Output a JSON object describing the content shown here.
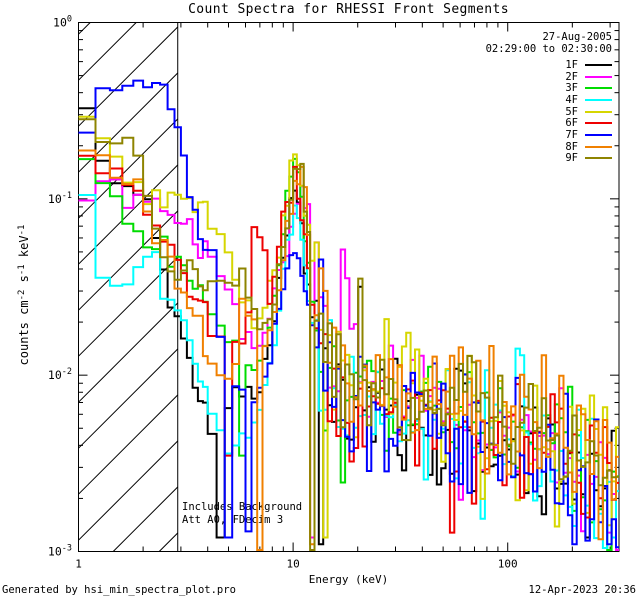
{
  "title": "Count Spectra for RHESSI Front Segments",
  "legend": {
    "date": "27-Aug-2005",
    "time_range": "02:29:00 to 02:30:00",
    "entries": [
      {
        "label": "1F",
        "color": "#000000"
      },
      {
        "label": "2F",
        "color": "#ff00ff"
      },
      {
        "label": "3F",
        "color": "#00dc00"
      },
      {
        "label": "4F",
        "color": "#00ffff"
      },
      {
        "label": "5F",
        "color": "#d6d600"
      },
      {
        "label": "6F",
        "color": "#ee0000"
      },
      {
        "label": "7F",
        "color": "#0000ff"
      },
      {
        "label": "8F",
        "color": "#f08000"
      },
      {
        "label": "9F",
        "color": "#8e8400"
      }
    ]
  },
  "annotation": {
    "line1": "Includes Background",
    "line2": "Att A0, FDecim 3"
  },
  "footer": {
    "left": "Generated by hsi_min_spectra_plot.pro",
    "right": "12-Apr-2023 20:36"
  },
  "axes": {
    "x": {
      "label": "Energy (keV)",
      "min": 1,
      "max": 330,
      "majors": [
        {
          "value": 1,
          "label": "1"
        },
        {
          "value": 10,
          "label": "10"
        },
        {
          "value": 100,
          "label": "100"
        }
      ]
    },
    "y": {
      "label_parts": [
        {
          "t": "counts cm"
        },
        {
          "t": "-2",
          "sup": true
        },
        {
          "t": " s"
        },
        {
          "t": "-1",
          "sup": true
        },
        {
          "t": " keV"
        },
        {
          "t": "-1",
          "sup": true
        }
      ],
      "min": 0.001,
      "max": 1,
      "majors": [
        {
          "value": 1,
          "exp": "0"
        },
        {
          "value": 0.1,
          "exp": "-1"
        },
        {
          "value": 0.01,
          "exp": "-2"
        },
        {
          "value": 0.001,
          "exp": "-3"
        }
      ]
    }
  },
  "chart_data": {
    "type": "line",
    "style": "histogram-step",
    "x_scale": "log",
    "y_scale": "log",
    "xlim": [
      1,
      330
    ],
    "ylim": [
      0.001,
      1
    ],
    "xlabel": "Energy (keV)",
    "ylabel": "counts cm^-2 s^-1 keV^-1",
    "grid": false,
    "legend_position": "top-right-inside",
    "hatch_below_keV": 2.9,
    "binning": [
      {
        "from": 1,
        "to": 4,
        "step": 0.2
      },
      {
        "from": 4,
        "to": 12,
        "step": 0.4
      },
      {
        "from": 12,
        "to": 330,
        "ratio": 1.048
      }
    ],
    "noise": {
      "sigma_smooth": 0.04,
      "smooth_below_keV": 12.4,
      "sigma_transition": 0.24,
      "transition_below_keV": 21,
      "sigma_noisy": 0.17,
      "noisy_slope": 0.05
    },
    "series": [
      {
        "name": "1F",
        "color": "#000000",
        "seed": 7,
        "anchors": [
          [
            1,
            0.33
          ],
          [
            1.15,
            0.22
          ],
          [
            1.35,
            0.15
          ],
          [
            1.65,
            0.12
          ],
          [
            2.05,
            0.1
          ],
          [
            2.45,
            0.05
          ],
          [
            2.85,
            0.02
          ],
          [
            3.25,
            0.012
          ],
          [
            3.85,
            0.006
          ],
          [
            4.55,
            0.0042
          ],
          [
            5.55,
            0.009
          ],
          [
            6.55,
            0.007
          ],
          [
            7.55,
            0.012
          ],
          [
            8.55,
            0.03
          ],
          [
            9.55,
            0.08
          ],
          [
            10.35,
            0.11
          ],
          [
            11.05,
            0.065
          ],
          [
            12.05,
            0.024
          ],
          [
            13.5,
            0.011
          ],
          [
            16,
            0.0078
          ],
          [
            20,
            0.006
          ],
          [
            30,
            0.0055
          ],
          [
            50,
            0.005
          ],
          [
            80,
            0.0042
          ],
          [
            130,
            0.0035
          ],
          [
            200,
            0.0028
          ],
          [
            300,
            0.0021
          ],
          [
            330,
            0.0018
          ]
        ],
        "dips": [
          [
            4.5,
            0.0012
          ],
          [
            13.2,
            0.0011
          ],
          [
            232,
            0.0012
          ]
        ]
      },
      {
        "name": "2F",
        "color": "#ff00ff",
        "seed": 13,
        "anchors": [
          [
            1,
            0.105
          ],
          [
            1.8,
            0.1
          ],
          [
            2.6,
            0.09
          ],
          [
            3.2,
            0.075
          ],
          [
            3.7,
            0.05
          ],
          [
            4.3,
            0.04
          ],
          [
            5,
            0.034
          ],
          [
            5.7,
            0.022
          ],
          [
            6.6,
            0.013
          ],
          [
            7.6,
            0.018
          ],
          [
            8.6,
            0.035
          ],
          [
            9.6,
            0.06
          ],
          [
            10.9,
            0.115
          ],
          [
            11.9,
            0.085
          ],
          [
            12.8,
            0.04
          ],
          [
            14,
            0.018
          ],
          [
            16,
            0.011
          ],
          [
            18,
            0.028
          ],
          [
            20,
            0.008
          ],
          [
            30,
            0.006
          ],
          [
            50,
            0.005
          ],
          [
            80,
            0.0045
          ],
          [
            130,
            0.004
          ],
          [
            200,
            0.003
          ],
          [
            300,
            0.0024
          ],
          [
            330,
            0.002
          ]
        ],
        "dips": [
          [
            12.2,
            0.0012
          ],
          [
            322,
            0.001
          ]
        ]
      },
      {
        "name": "3F",
        "color": "#00dc00",
        "seed": 21,
        "anchors": [
          [
            1,
            0.22
          ],
          [
            1.25,
            0.15
          ],
          [
            1.6,
            0.08
          ],
          [
            2,
            0.06
          ],
          [
            2.6,
            0.05
          ],
          [
            3.2,
            0.04
          ],
          [
            3.9,
            0.028
          ],
          [
            4.6,
            0.02
          ],
          [
            5.4,
            0.014
          ],
          [
            6.3,
            0.01
          ],
          [
            7.3,
            0.012
          ],
          [
            8.3,
            0.03
          ],
          [
            9.3,
            0.08
          ],
          [
            10.15,
            0.175
          ],
          [
            11,
            0.09
          ],
          [
            12,
            0.03
          ],
          [
            13.5,
            0.014
          ],
          [
            16,
            0.009
          ],
          [
            20,
            0.0078
          ],
          [
            30,
            0.007
          ],
          [
            45,
            0.0065
          ],
          [
            70,
            0.0058
          ],
          [
            110,
            0.0048
          ],
          [
            180,
            0.0038
          ],
          [
            260,
            0.003
          ],
          [
            330,
            0.0024
          ]
        ],
        "dips": [
          [
            5.8,
            0.0035
          ]
        ]
      },
      {
        "name": "4F",
        "color": "#00ffff",
        "seed": 34,
        "anchors": [
          [
            1,
            0.125
          ],
          [
            1.15,
            0.09
          ],
          [
            1.3,
            0.04
          ],
          [
            1.6,
            0.028
          ],
          [
            2,
            0.05
          ],
          [
            2.4,
            0.04
          ],
          [
            2.9,
            0.022
          ],
          [
            3.4,
            0.014
          ],
          [
            3.9,
            0.009
          ],
          [
            4.4,
            0.0045
          ],
          [
            5.2,
            0.0038
          ],
          [
            6.2,
            0.0045
          ],
          [
            7.2,
            0.007
          ],
          [
            8.2,
            0.016
          ],
          [
            9.2,
            0.045
          ],
          [
            10.3,
            0.09
          ],
          [
            11.1,
            0.055
          ],
          [
            12.2,
            0.022
          ],
          [
            13.8,
            0.011
          ],
          [
            16,
            0.0075
          ],
          [
            20,
            0.006
          ],
          [
            30,
            0.0055
          ],
          [
            50,
            0.005
          ],
          [
            80,
            0.0046
          ],
          [
            130,
            0.004
          ],
          [
            200,
            0.0032
          ],
          [
            300,
            0.0024
          ],
          [
            330,
            0.002
          ]
        ],
        "dips": [
          [
            318,
            0.0012
          ]
        ]
      },
      {
        "name": "5F",
        "color": "#d6d600",
        "seed": 55,
        "anchors": [
          [
            1,
            0.3
          ],
          [
            1.3,
            0.22
          ],
          [
            1.7,
            0.13
          ],
          [
            2.1,
            0.1
          ],
          [
            2.8,
            0.095
          ],
          [
            3.4,
            0.09
          ],
          [
            4,
            0.08
          ],
          [
            4.8,
            0.05
          ],
          [
            5.6,
            0.03
          ],
          [
            6.6,
            0.02
          ],
          [
            7.6,
            0.025
          ],
          [
            8.8,
            0.06
          ],
          [
            10.3,
            0.2
          ],
          [
            11.2,
            0.12
          ],
          [
            12.3,
            0.045
          ],
          [
            14,
            0.02
          ],
          [
            17,
            0.011
          ],
          [
            22,
            0.0085
          ],
          [
            30,
            0.0075
          ],
          [
            50,
            0.0068
          ],
          [
            80,
            0.006
          ],
          [
            120,
            0.005
          ],
          [
            200,
            0.0038
          ],
          [
            300,
            0.0028
          ],
          [
            330,
            0.0024
          ]
        ],
        "dips": [
          [
            13.9,
            0.0012
          ]
        ]
      },
      {
        "name": "6F",
        "color": "#ee0000",
        "seed": 89,
        "anchors": [
          [
            1,
            0.31
          ],
          [
            1.12,
            0.15
          ],
          [
            1.5,
            0.13
          ],
          [
            1.9,
            0.11
          ],
          [
            2.3,
            0.07
          ],
          [
            2.8,
            0.042
          ],
          [
            3.3,
            0.028
          ],
          [
            4,
            0.024
          ],
          [
            4.8,
            0.014
          ],
          [
            5.6,
            0.012
          ],
          [
            6.2,
            0.028
          ],
          [
            6.7,
            0.068
          ],
          [
            7.2,
            0.06
          ],
          [
            7.7,
            0.028
          ],
          [
            8.4,
            0.045
          ],
          [
            9.2,
            0.085
          ],
          [
            10.2,
            0.135
          ],
          [
            11,
            0.085
          ],
          [
            12,
            0.032
          ],
          [
            13.5,
            0.014
          ],
          [
            16,
            0.009
          ],
          [
            20,
            0.007
          ],
          [
            30,
            0.006
          ],
          [
            50,
            0.0052
          ],
          [
            80,
            0.0047
          ],
          [
            130,
            0.004
          ],
          [
            200,
            0.0032
          ],
          [
            300,
            0.0024
          ],
          [
            330,
            0.002
          ]
        ],
        "dips": [
          [
            5.2,
            0.0035
          ]
        ]
      },
      {
        "name": "7F",
        "color": "#0000ff",
        "seed": 144,
        "anchors": [
          [
            1,
            0.25
          ],
          [
            1.3,
            0.4
          ],
          [
            1.7,
            0.45
          ],
          [
            2.3,
            0.46
          ],
          [
            2.7,
            0.33
          ],
          [
            3,
            0.26
          ],
          [
            3.3,
            0.1
          ],
          [
            3.8,
            0.055
          ],
          [
            4.3,
            0.045
          ],
          [
            4.7,
            0.012
          ],
          [
            5.5,
            0.008
          ],
          [
            6.5,
            0.007
          ],
          [
            7.5,
            0.01
          ],
          [
            8.5,
            0.022
          ],
          [
            9.5,
            0.04
          ],
          [
            10.4,
            0.048
          ],
          [
            11.2,
            0.032
          ],
          [
            12.5,
            0.018
          ],
          [
            14,
            0.01
          ],
          [
            17,
            0.007
          ],
          [
            22,
            0.0055
          ],
          [
            35,
            0.005
          ],
          [
            60,
            0.0045
          ],
          [
            100,
            0.004
          ],
          [
            150,
            0.0035
          ],
          [
            220,
            0.0028
          ],
          [
            300,
            0.0018
          ],
          [
            330,
            0.0015
          ]
        ],
        "dips": [
          [
            4.9,
            0.0012
          ],
          [
            6.3,
            0.0013
          ],
          [
            209,
            0.0011
          ],
          [
            297,
            0.0011
          ]
        ]
      },
      {
        "name": "8F",
        "color": "#f08000",
        "seed": 233,
        "anchors": [
          [
            1,
            0.2
          ],
          [
            1.35,
            0.165
          ],
          [
            1.75,
            0.115
          ],
          [
            2.15,
            0.085
          ],
          [
            2.55,
            0.05
          ],
          [
            2.95,
            0.03
          ],
          [
            3.45,
            0.024
          ],
          [
            4.05,
            0.013
          ],
          [
            4.65,
            0.01
          ],
          [
            5.25,
            0.009
          ],
          [
            5.85,
            0.024
          ],
          [
            6.65,
            0.02
          ],
          [
            7.45,
            0.014
          ],
          [
            8.25,
            0.024
          ],
          [
            9.05,
            0.05
          ],
          [
            10.05,
            0.1
          ],
          [
            10.95,
            0.14
          ],
          [
            11.85,
            0.075
          ],
          [
            12.85,
            0.032
          ],
          [
            14,
            0.017
          ],
          [
            16,
            0.01
          ],
          [
            20,
            0.0085
          ],
          [
            30,
            0.0075
          ],
          [
            55,
            0.008
          ],
          [
            85,
            0.006
          ],
          [
            130,
            0.005
          ],
          [
            200,
            0.004
          ],
          [
            300,
            0.003
          ],
          [
            330,
            0.0026
          ]
        ],
        "dips": [
          [
            6.9,
            0.001
          ],
          [
            12.1,
            0.0011
          ]
        ]
      },
      {
        "name": "9F",
        "color": "#8e8400",
        "seed": 377,
        "anchors": [
          [
            1,
            0.33
          ],
          [
            1.2,
            0.21
          ],
          [
            1.9,
            0.195
          ],
          [
            2.15,
            0.09
          ],
          [
            2.5,
            0.05
          ],
          [
            2.9,
            0.034
          ],
          [
            3.35,
            0.044
          ],
          [
            3.85,
            0.028
          ],
          [
            4.45,
            0.042
          ],
          [
            5.05,
            0.032
          ],
          [
            5.65,
            0.042
          ],
          [
            6.45,
            0.024
          ],
          [
            7.25,
            0.017
          ],
          [
            8.05,
            0.024
          ],
          [
            9.05,
            0.06
          ],
          [
            10.45,
            0.17
          ],
          [
            11.25,
            0.105
          ],
          [
            12.25,
            0.038
          ],
          [
            13.5,
            0.018
          ],
          [
            16,
            0.011
          ],
          [
            20,
            0.009
          ],
          [
            30,
            0.008
          ],
          [
            50,
            0.007
          ],
          [
            80,
            0.006
          ],
          [
            130,
            0.005
          ],
          [
            200,
            0.004
          ],
          [
            300,
            0.0029
          ],
          [
            330,
            0.0025
          ]
        ],
        "dips": [
          [
            12.5,
            0.001
          ]
        ]
      }
    ]
  }
}
